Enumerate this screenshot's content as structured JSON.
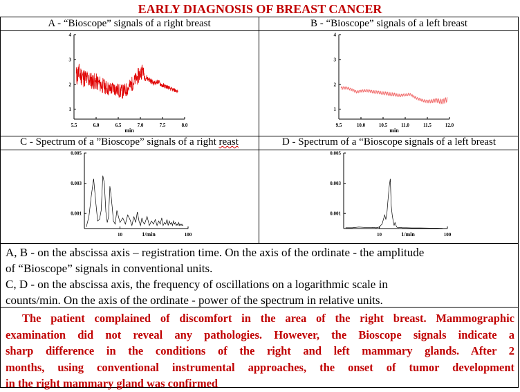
{
  "title": "EARLY DIAGNOSIS OF BREAST CANCER",
  "captions": {
    "a": "A - “Bioscope” signals of a right breast",
    "b": "B - “Bioscope” signals of a left breast",
    "c_main": "C - Spectrum of a ”Bioscope” signals of a right ",
    "c_typo": "reast",
    "d": "D - Spectrum of a “Bioscope signals of a left breast"
  },
  "notes": {
    "line1": "A, B - on the abscissa axis – registration time. On the axis of the ordinate - the amplitude",
    "line2": "of “Bioscope” signals in conventional units.",
    "line3": "C, D - on the abscissa axis, the frequency of oscillations on a logarithmic scale in",
    "line4": "counts/min. On the axis of the ordinate - power of the spectrum in relative units."
  },
  "conclusion": {
    "line1": "The patient complained of discomfort in the area of the right breast. Mammographic",
    "line2": "examination did not reveal any pathologies. However, the Bioscope signals indicate a",
    "line3": "sharp difference in the conditions of the right and left mammary glands. After 2",
    "line4": "months, using conventional instrumental approaches, the onset of tumor development",
    "line5": "in the right mammary gland was confirmed"
  },
  "colors": {
    "title": "#c00000",
    "signal_a": "#e00000",
    "signal_b": "#f06060",
    "spectrum": "#000000"
  },
  "chart_data": [
    {
      "id": "A",
      "type": "line",
      "xlabel": "min",
      "ylabel": "",
      "x_ticks": [
        "5.5",
        "6.0",
        "6.5",
        "7.0",
        "7.5",
        "8.0"
      ],
      "y_ticks": [
        "1",
        "2",
        "3",
        "4"
      ],
      "xlim": [
        5.5,
        8.0
      ],
      "ylim": [
        0.6,
        4.0
      ],
      "series": [
        {
          "x": [
            5.55,
            5.6,
            5.7,
            5.8,
            5.9,
            6.0,
            6.1,
            6.2,
            6.3,
            6.4,
            6.5,
            6.6,
            6.7,
            6.8,
            6.9,
            7.0,
            7.05,
            7.1,
            7.2,
            7.3,
            7.4,
            7.5,
            7.6,
            7.7,
            7.8,
            7.85
          ],
          "y": [
            2.3,
            2.45,
            2.3,
            2.2,
            2.15,
            2.1,
            2.0,
            1.9,
            1.8,
            1.85,
            1.75,
            1.7,
            1.8,
            2.0,
            2.2,
            2.45,
            2.6,
            2.3,
            2.2,
            2.05,
            2.1,
            1.95,
            1.9,
            1.8,
            1.75,
            1.7
          ],
          "noise": [
            0.45,
            0.45,
            0.4,
            0.4,
            0.35,
            0.35,
            0.35,
            0.3,
            0.3,
            0.3,
            0.3,
            0.3,
            0.3,
            0.3,
            0.3,
            0.35,
            0.3,
            0.15,
            0.12,
            0.1,
            0.1,
            0.1,
            0.08,
            0.08,
            0.08,
            0.08
          ]
        }
      ]
    },
    {
      "id": "B",
      "type": "line",
      "xlabel": "min",
      "ylabel": "",
      "x_ticks": [
        "9.5",
        "10.0",
        "10.5",
        "11.0",
        "11.5",
        "12.0"
      ],
      "y_ticks": [
        "1",
        "2",
        "3",
        "4"
      ],
      "xlim": [
        9.5,
        12.0
      ],
      "ylim": [
        0.6,
        4.0
      ],
      "series": [
        {
          "x": [
            9.55,
            9.7,
            9.9,
            10.1,
            10.3,
            10.5,
            10.7,
            10.9,
            11.1,
            11.3,
            11.5,
            11.7,
            11.85,
            11.95
          ],
          "y": [
            1.85,
            1.85,
            1.7,
            1.75,
            1.7,
            1.65,
            1.6,
            1.55,
            1.6,
            1.4,
            1.3,
            1.35,
            1.3,
            1.4
          ],
          "noise": [
            0.06,
            0.05,
            0.05,
            0.05,
            0.06,
            0.06,
            0.07,
            0.05,
            0.05,
            0.05,
            0.06,
            0.08,
            0.1,
            0.1
          ]
        }
      ]
    },
    {
      "id": "C",
      "type": "line",
      "xlabel": "1/min",
      "ylabel": "",
      "x_ticks": [
        "10",
        "100"
      ],
      "y_ticks": [
        "0.001",
        "0.003",
        "0.005"
      ],
      "xlim": [
        3,
        100
      ],
      "ylim": [
        0,
        0.005
      ],
      "series": [
        {
          "x": [
            3.2,
            3.5,
            3.8,
            4.1,
            4.4,
            4.7,
            5.0,
            5.3,
            5.6,
            5.9,
            6.2,
            6.5,
            6.8,
            7.1,
            7.4,
            7.7,
            8.0,
            8.5,
            9.0,
            9.5,
            10,
            11,
            12,
            13,
            14,
            15,
            16,
            17,
            18,
            19,
            20,
            21,
            22,
            23,
            25,
            27,
            29,
            31,
            33,
            35,
            37,
            39,
            41,
            43,
            45,
            47,
            49,
            51,
            53,
            55,
            57,
            59,
            61,
            63,
            65,
            67,
            69,
            71,
            73,
            75,
            77,
            79,
            81,
            83,
            85
          ],
          "y": [
            0.0001,
            0.0008,
            0.0022,
            0.0033,
            0.0018,
            0.0005,
            0.0006,
            0.0012,
            0.0035,
            0.003,
            0.0011,
            0.0004,
            0.0008,
            0.0028,
            0.0022,
            0.0014,
            0.0005,
            0.0003,
            0.0012,
            0.0008,
            0.0004,
            0.0007,
            0.0003,
            0.0009,
            0.0006,
            0.0002,
            0.0008,
            0.0004,
            0.0011,
            0.0005,
            0.0002,
            0.0007,
            0.0004,
            0.0003,
            0.0008,
            0.0002,
            0.0005,
            0.0003,
            0.0006,
            0.0002,
            0.0005,
            0.0003,
            0.0007,
            0.0002,
            0.0004,
            0.0003,
            0.0006,
            0.0002,
            0.0005,
            0.0003,
            0.0004,
            0.0002,
            0.0005,
            0.0003,
            0.0004,
            0.0002,
            0.0003,
            0.0002,
            0.0004,
            0.0002,
            0.0003,
            0.0002,
            0.0003,
            0.0002,
            0.0002
          ]
        }
      ]
    },
    {
      "id": "D",
      "type": "line",
      "xlabel": "1/min",
      "ylabel": "",
      "x_ticks": [
        "10",
        "100"
      ],
      "y_ticks": [
        "0.001",
        "0.003",
        "0.005"
      ],
      "xlim": [
        3,
        100
      ],
      "ylim": [
        0,
        0.005
      ],
      "series": [
        {
          "x": [
            3.2,
            4,
            5,
            6,
            7,
            8,
            9,
            10,
            11,
            12,
            12.5,
            13,
            13.5,
            14,
            14.5,
            15,
            15.5,
            16,
            16.5,
            17,
            18,
            19,
            20,
            22,
            25,
            30,
            40,
            55,
            70,
            85
          ],
          "y": [
            5e-05,
            5e-05,
            0.0001,
            8e-05,
            6e-05,
            8e-05,
            5e-05,
            0.0001,
            0.0003,
            0.0009,
            0.0006,
            0.0011,
            0.002,
            0.0028,
            0.0033,
            0.0015,
            0.0009,
            0.0005,
            0.0002,
            0.0004,
            0.0001,
            5e-05,
            8e-05,
            5e-05,
            5e-05,
            4e-05,
            4e-05,
            3e-05,
            3e-05,
            2e-05
          ]
        }
      ]
    }
  ]
}
